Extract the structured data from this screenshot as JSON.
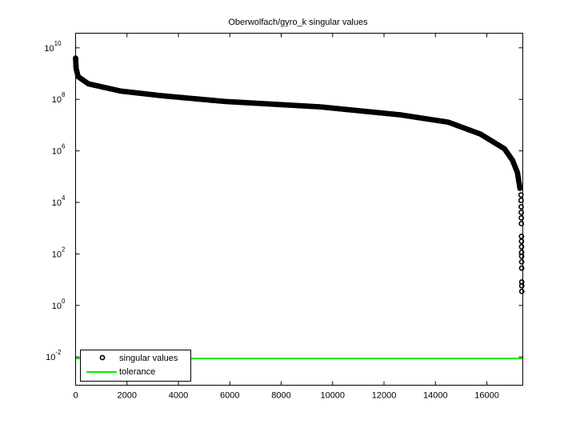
{
  "chart_data": {
    "type": "scatter",
    "title": "Oberwolfach/gyro_k singular values",
    "xlabel": "",
    "ylabel": "",
    "xscale": "linear",
    "yscale": "log",
    "xlim": [
      0,
      17400
    ],
    "ylim": [
      0.0008,
      37000000000
    ],
    "grid": false,
    "legend_position": "lower left",
    "x_ticks": [
      0,
      2000,
      4000,
      6000,
      8000,
      10000,
      12000,
      14000,
      16000
    ],
    "x_tick_labels": [
      "0",
      "2000",
      "4000",
      "6000",
      "8000",
      "10000",
      "12000",
      "14000",
      "16000"
    ],
    "y_ticks": [
      0.01,
      1,
      100,
      10000,
      1000000,
      100000000,
      10000000000
    ],
    "y_tick_labels": [
      {
        "base": "10",
        "exp": "-2"
      },
      {
        "base": "10",
        "exp": "0"
      },
      {
        "base": "10",
        "exp": "2"
      },
      {
        "base": "10",
        "exp": "4"
      },
      {
        "base": "10",
        "exp": "6"
      },
      {
        "base": "10",
        "exp": "8"
      },
      {
        "base": "10",
        "exp": "10"
      }
    ],
    "series": [
      {
        "name": "singular values",
        "style": "open black circles",
        "color": "#000000",
        "points": [
          [
            0,
            3980000000.0
          ],
          [
            20,
            1550000000.0
          ],
          [
            100,
            760000000.0
          ],
          [
            500,
            400000000.0
          ],
          [
            1750,
            210000000.0
          ],
          [
            3300,
            140000000.0
          ],
          [
            5800,
            83000000.0
          ],
          [
            9525,
            51000000.0
          ],
          [
            12640,
            25000000.0
          ],
          [
            14500,
            13000000.0
          ],
          [
            15750,
            4500000.0
          ],
          [
            16690,
            1200000.0
          ],
          [
            17000,
            430000.0
          ],
          [
            17190,
            145000.0
          ],
          [
            17290,
            35000.0
          ],
          [
            17330,
            19500.0
          ],
          [
            17333,
            12000.0
          ],
          [
            17336,
            6800.0
          ],
          [
            17339,
            4100.0
          ],
          [
            17342,
            2500.0
          ],
          [
            17345,
            1500.0
          ],
          [
            17348,
            480
          ],
          [
            17350,
            310
          ],
          [
            17352,
            190
          ],
          [
            17354,
            115
          ],
          [
            17355,
            81
          ],
          [
            17356,
            49
          ],
          [
            17357,
            28
          ],
          [
            17359,
            8.1
          ],
          [
            17360,
            5.8
          ],
          [
            17361,
            3.5
          ]
        ]
      },
      {
        "name": "tolerance",
        "style": "solid line",
        "color": "#00ee00",
        "value": 0.0087
      }
    ]
  },
  "legend": {
    "items": [
      {
        "label": "singular values",
        "marker": "circle-open",
        "color": "#000000"
      },
      {
        "label": "tolerance",
        "marker": "line",
        "color": "#00ee00"
      }
    ]
  }
}
